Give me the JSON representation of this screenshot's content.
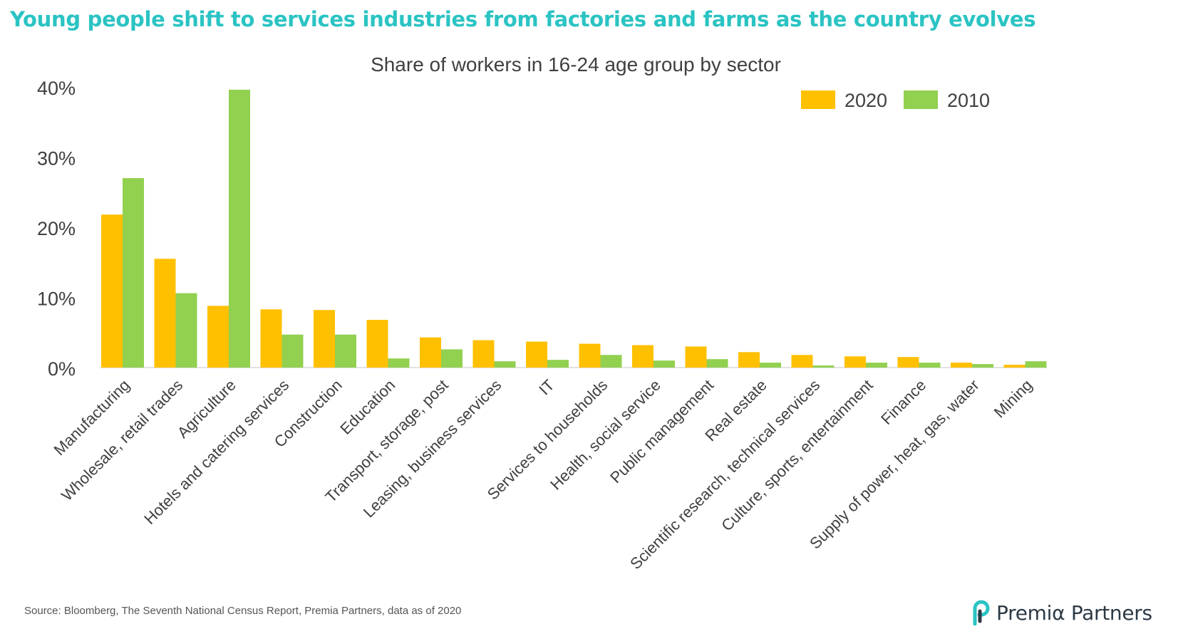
{
  "headline": "Young people shift to services industries from factories and farms as the country evolves",
  "source": "Source: Bloomberg, The Seventh National Census Report, Premia Partners, data as of 2020",
  "logo": {
    "text": "Premiα Partners",
    "icon": "premia-p-logo-icon",
    "colors": [
      "#2BC3C3",
      "#2C3A46"
    ]
  },
  "chart_data": {
    "type": "bar",
    "title": "Share of workers in 16-24 age group by sector",
    "xlabel": "",
    "ylabel": "",
    "ylim": [
      0,
      40
    ],
    "yticks": [
      0,
      10,
      20,
      30,
      40
    ],
    "ytick_labels": [
      "0%",
      "10%",
      "20%",
      "30%",
      "40%"
    ],
    "grid": false,
    "legend_position": "top-right",
    "categories": [
      "Manufacturing",
      "Wholesale, retail trades",
      "Agriculture",
      "Hotels and catering services",
      "Construction",
      "Education",
      "Transport, storage, post",
      "Leasing, business services",
      "IT",
      "Services to households",
      "Health, social service",
      "Public management",
      "Real estate",
      "Scientific research, technical services",
      "Culture, sports, entertainment",
      "Finance",
      "Supply of power, heat, gas, water",
      "Mining"
    ],
    "series": [
      {
        "name": "2020",
        "color": "#FFC000",
        "values": [
          21.8,
          15.5,
          8.8,
          8.3,
          8.2,
          6.8,
          4.3,
          3.9,
          3.7,
          3.4,
          3.2,
          3.0,
          2.2,
          1.8,
          1.6,
          1.5,
          0.7,
          0.4
        ]
      },
      {
        "name": "2010",
        "color": "#92D050",
        "values": [
          27.0,
          10.6,
          39.6,
          4.7,
          4.7,
          1.3,
          2.6,
          0.9,
          1.1,
          1.8,
          1.0,
          1.2,
          0.7,
          0.3,
          0.7,
          0.7,
          0.5,
          0.9
        ]
      }
    ]
  }
}
